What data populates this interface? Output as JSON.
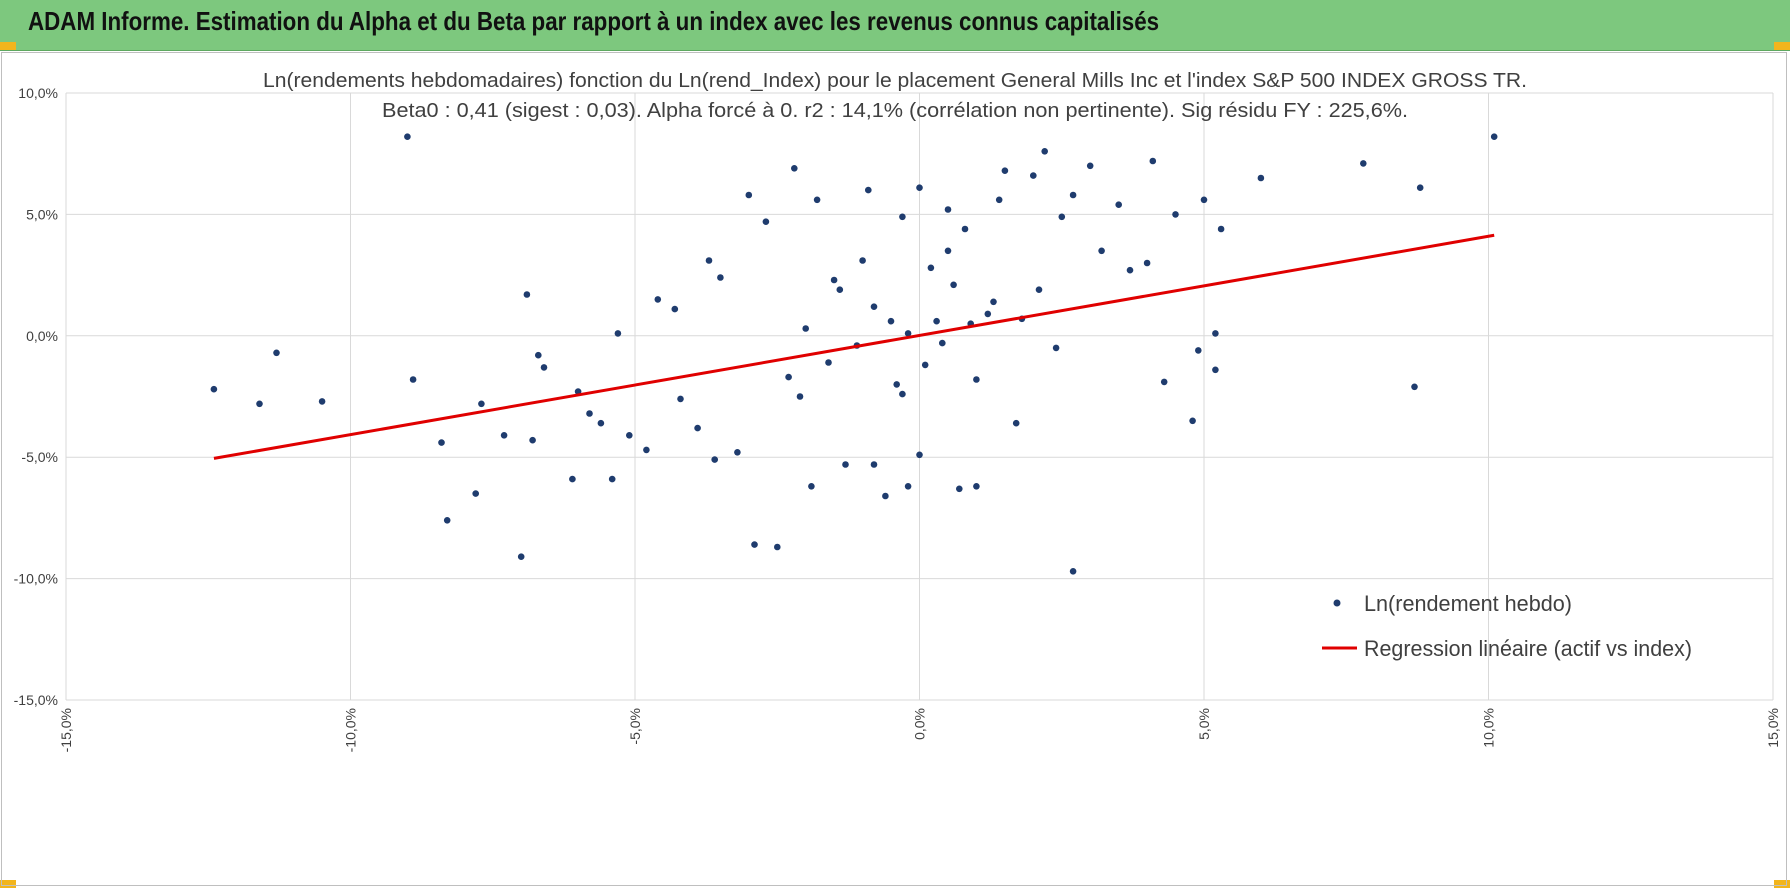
{
  "header": {
    "title": "ADAM Informe. Estimation du Alpha et du Beta par rapport à un index avec les revenus connus capitalisés"
  },
  "colors": {
    "header_bg": "#7dc87e",
    "corner_accent": "#f2b51d",
    "points": "#1f3c6e",
    "regression": "#e00000",
    "grid": "#d9d9d9"
  },
  "chart_data": {
    "type": "scatter",
    "title_line1": "Ln(rendements hebdomadaires) fonction du Ln(rend_Index) pour le placement General Mills Inc et l'index S&P 500 INDEX GROSS TR.",
    "title_line2": "Beta0 : 0,41 (sigest : 0,03).  Alpha forcé à 0. r2 : 14,1% (corrélation non pertinente). Sig résidu FY : 225,6%.",
    "xlabel": "",
    "ylabel": "",
    "xlim": [
      -15,
      15
    ],
    "ylim": [
      -15,
      10
    ],
    "x_ticks": [
      -15,
      -10,
      -5,
      0,
      5,
      10,
      15
    ],
    "y_ticks": [
      -15,
      -10,
      -5,
      0,
      5,
      10
    ],
    "x_tick_labels": [
      "-15,0%",
      "-10,0%",
      "-5,0%",
      "0,0%",
      "5,0%",
      "10,0%",
      "15,0%"
    ],
    "y_tick_labels": [
      "-15,0%",
      "-10,0%",
      "-5,0%",
      "0,0%",
      "5,0%",
      "10,0%"
    ],
    "grid": true,
    "legend_position": "bottom-right",
    "series": [
      {
        "name": "Ln(rendement hebdo)",
        "kind": "points",
        "color": "#1f3c6e",
        "points": [
          [
            -12.4,
            -2.2
          ],
          [
            -11.6,
            -2.8
          ],
          [
            -11.3,
            -0.7
          ],
          [
            -10.5,
            -2.7
          ],
          [
            -9.0,
            8.2
          ],
          [
            -8.9,
            -1.8
          ],
          [
            -8.4,
            -4.4
          ],
          [
            -8.3,
            -7.6
          ],
          [
            -7.8,
            -6.5
          ],
          [
            -7.7,
            -2.8
          ],
          [
            -7.3,
            -4.1
          ],
          [
            -7.0,
            -9.1
          ],
          [
            -6.9,
            1.7
          ],
          [
            -6.8,
            -4.3
          ],
          [
            -6.7,
            -0.8
          ],
          [
            -6.6,
            -1.3
          ],
          [
            -6.1,
            -5.9
          ],
          [
            -6.0,
            -2.3
          ],
          [
            -5.8,
            -3.2
          ],
          [
            -5.6,
            -3.6
          ],
          [
            -5.4,
            -5.9
          ],
          [
            -5.3,
            0.1
          ],
          [
            -5.1,
            -4.1
          ],
          [
            -4.8,
            -4.7
          ],
          [
            -4.6,
            1.5
          ],
          [
            -4.3,
            1.1
          ],
          [
            -4.2,
            -2.6
          ],
          [
            -3.9,
            -3.8
          ],
          [
            -3.7,
            3.1
          ],
          [
            -3.6,
            -5.1
          ],
          [
            -3.5,
            2.4
          ],
          [
            -3.2,
            -4.8
          ],
          [
            -3.0,
            5.8
          ],
          [
            -2.9,
            -8.6
          ],
          [
            -2.7,
            4.7
          ],
          [
            -2.5,
            -8.7
          ],
          [
            -2.2,
            6.9
          ],
          [
            -2.1,
            -2.5
          ],
          [
            -1.9,
            -6.2
          ],
          [
            -1.8,
            5.6
          ],
          [
            -1.5,
            2.3
          ],
          [
            -1.3,
            -5.3
          ],
          [
            -1.0,
            3.1
          ],
          [
            -0.9,
            6.0
          ],
          [
            -0.8,
            -5.3
          ],
          [
            -0.6,
            -6.6
          ],
          [
            -0.4,
            -2.0
          ],
          [
            -0.3,
            4.9
          ],
          [
            -0.2,
            -6.2
          ],
          [
            0.0,
            6.1
          ],
          [
            0.0,
            -4.9
          ],
          [
            0.3,
            0.6
          ],
          [
            0.5,
            5.2
          ],
          [
            0.7,
            -6.3
          ],
          [
            0.8,
            4.4
          ],
          [
            1.0,
            -6.2
          ],
          [
            1.2,
            0.9
          ],
          [
            1.4,
            5.6
          ],
          [
            1.5,
            6.8
          ],
          [
            1.7,
            -3.6
          ],
          [
            2.0,
            6.6
          ],
          [
            2.2,
            7.6
          ],
          [
            2.5,
            4.9
          ],
          [
            2.7,
            5.8
          ],
          [
            2.7,
            -9.7
          ],
          [
            3.0,
            7.0
          ],
          [
            3.2,
            3.5
          ],
          [
            3.5,
            5.4
          ],
          [
            3.7,
            2.7
          ],
          [
            4.0,
            3.0
          ],
          [
            4.1,
            7.2
          ],
          [
            4.3,
            -1.9
          ],
          [
            4.5,
            5.0
          ],
          [
            4.8,
            -3.5
          ],
          [
            4.9,
            -0.6
          ],
          [
            5.0,
            5.6
          ],
          [
            5.2,
            -1.4
          ],
          [
            5.3,
            4.4
          ],
          [
            5.2,
            0.1
          ],
          [
            6.0,
            6.5
          ],
          [
            7.8,
            7.1
          ],
          [
            8.7,
            -2.1
          ],
          [
            8.8,
            6.1
          ],
          [
            10.1,
            8.2
          ],
          [
            -0.2,
            0.1
          ],
          [
            0.4,
            -0.3
          ],
          [
            -0.5,
            0.6
          ],
          [
            0.9,
            0.5
          ],
          [
            0.1,
            -1.2
          ],
          [
            -1.1,
            -0.4
          ],
          [
            1.3,
            1.4
          ],
          [
            -0.8,
            1.2
          ],
          [
            0.6,
            2.1
          ],
          [
            -1.6,
            -1.1
          ],
          [
            1.8,
            0.7
          ],
          [
            -0.3,
            -2.4
          ],
          [
            2.1,
            1.9
          ],
          [
            -2.0,
            0.3
          ],
          [
            0.2,
            2.8
          ],
          [
            1.0,
            -1.8
          ],
          [
            -1.4,
            1.9
          ],
          [
            2.4,
            -0.5
          ],
          [
            -2.3,
            -1.7
          ],
          [
            0.5,
            3.5
          ]
        ]
      },
      {
        "name": "Regression linéaire (actif vs index)",
        "kind": "line",
        "color": "#e00000",
        "x": [
          -12.4,
          10.1
        ],
        "y": [
          -5.05,
          4.14
        ]
      }
    ]
  }
}
